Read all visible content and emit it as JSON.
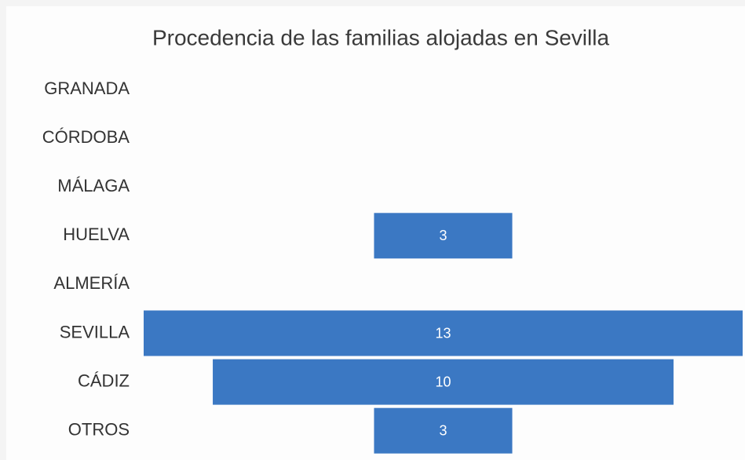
{
  "chart_data": {
    "type": "funnel",
    "title": "Procedencia de las familias alojadas en Sevilla",
    "categories": [
      "GRANADA",
      "CÓRDOBA",
      "MÁLAGA",
      "HUELVA",
      "ALMERÍA",
      "SEVILLA",
      "CÁDIZ",
      "OTROS"
    ],
    "values": [
      0,
      0,
      0,
      3,
      0,
      13,
      10,
      3
    ],
    "color": "#3b78c3"
  }
}
